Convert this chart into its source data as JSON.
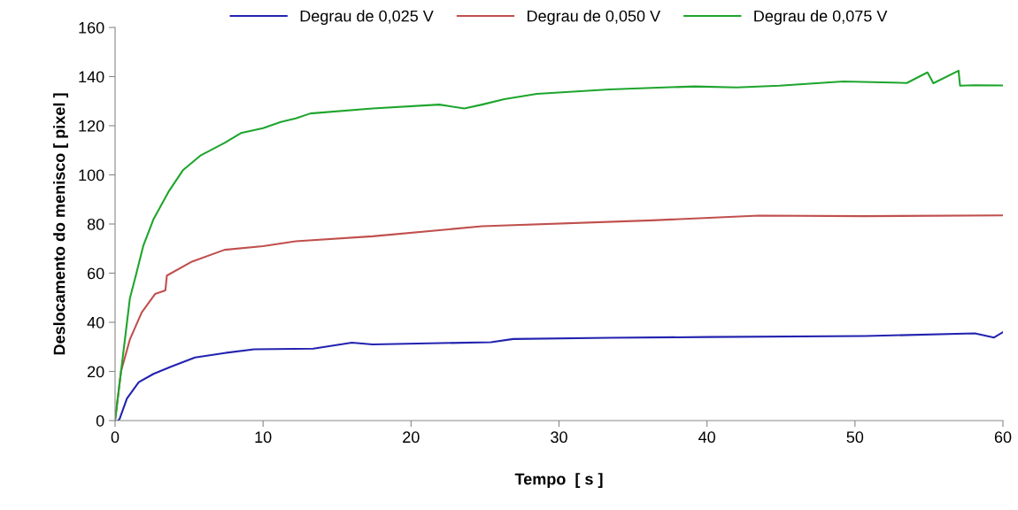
{
  "chart_data": {
    "type": "line",
    "xlabel": "Tempo  [ s ]",
    "ylabel": "Deslocamento do menisco [ pixel ]",
    "xlim": [
      0,
      60
    ],
    "xticks": [
      0,
      10,
      20,
      30,
      40,
      50,
      60
    ],
    "ylim": [
      0,
      160
    ],
    "yticks": [
      0,
      20,
      40,
      60,
      80,
      100,
      120,
      140,
      160
    ],
    "grid": false,
    "legend": "top",
    "marker": "none",
    "line_style": "solid",
    "series": [
      {
        "name": "Degrau de 0,025 V",
        "color": "#2323b0",
        "x": [
          0.2,
          0.3,
          0.8,
          1.6,
          2.6,
          3.8,
          5.4,
          7.4,
          9.4,
          13.4,
          16,
          17.4,
          25.4,
          26.9,
          33.4,
          40,
          50.7,
          58.1,
          59.4,
          60
        ],
        "values": [
          0,
          0.6,
          9,
          15.6,
          19,
          22,
          25.7,
          27.5,
          29,
          29.3,
          31.7,
          31,
          31.9,
          33.2,
          33.7,
          34,
          34.4,
          35.5,
          33.8,
          36
        ]
      },
      {
        "name": "Degrau de 0,050 V",
        "color": "#c0504d",
        "x": [
          0,
          0.4,
          1,
          1.8,
          2.7,
          3.4,
          3.5,
          5.2,
          7.4,
          10,
          12.2,
          17.4,
          24.8,
          36.3,
          43.5,
          50.6,
          60
        ],
        "values": [
          0,
          20,
          33,
          44,
          51.5,
          53,
          59,
          64.7,
          69.5,
          71,
          73,
          75,
          79.1,
          81.5,
          83.4,
          83.2,
          83.5
        ]
      },
      {
        "name": "Degrau de 0,075 V",
        "color": "#1ea52d",
        "x": [
          0,
          1,
          1.4,
          1.9,
          2.6,
          3.6,
          4.6,
          5.8,
          7.4,
          8.5,
          10,
          11.2,
          12.2,
          13.2,
          17.4,
          21.9,
          23.6,
          24.8,
          26.3,
          28.5,
          33.4,
          39.2,
          42,
          44.9,
          49.2,
          53.5,
          54.9,
          55.3,
          57,
          57.1,
          58.1,
          60
        ],
        "values": [
          0,
          49.7,
          59,
          71,
          82,
          93,
          102,
          108,
          113,
          117,
          119,
          121.5,
          123,
          125,
          127,
          128.6,
          127,
          128.6,
          130.8,
          133,
          134.8,
          136,
          135.6,
          136.3,
          138,
          137.4,
          141.7,
          137.3,
          142.4,
          136.3,
          136.5,
          136.4
        ]
      }
    ]
  }
}
